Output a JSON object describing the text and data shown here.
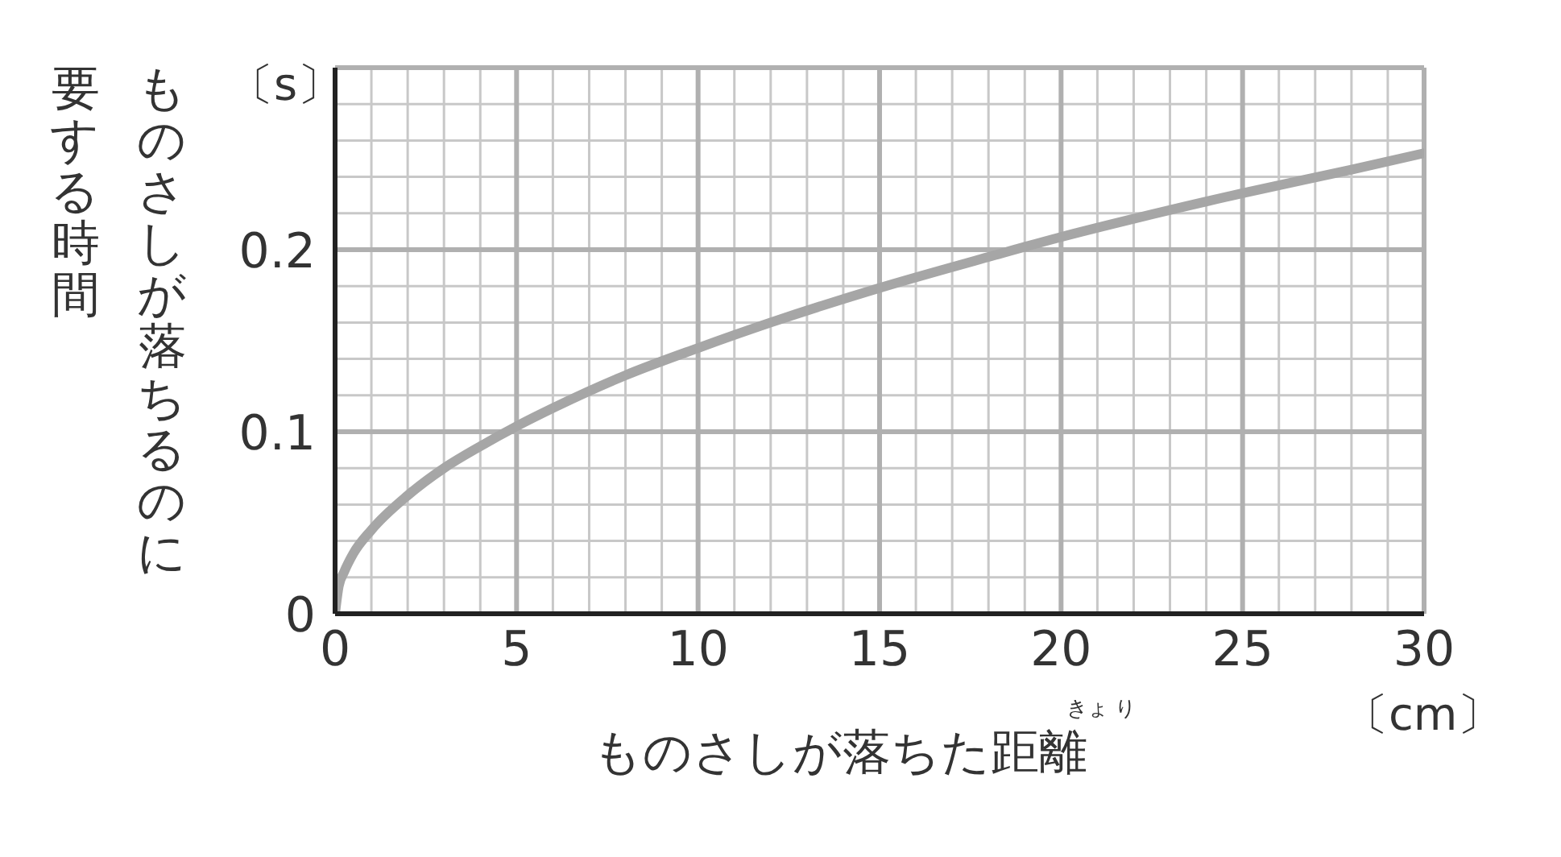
{
  "chart_data": {
    "type": "line",
    "xlabel": "ものさしが落ちた距離",
    "ylabel": "ものさしが落ちるのに要する時間",
    "annotations": [
      "〔s〕",
      "〔cm〕",
      "きょ り"
    ],
    "x": [
      0,
      0.1,
      0.25,
      0.5,
      1,
      2,
      3,
      4,
      5,
      6,
      8,
      10,
      12,
      15,
      18,
      20,
      22,
      25,
      28,
      30
    ],
    "series": [
      {
        "color": "#a6a6a6",
        "values": [
          0,
          0.015,
          0.023,
          0.033,
          0.046,
          0.065,
          0.08,
          0.092,
          0.103,
          0.113,
          0.131,
          0.146,
          0.16,
          0.179,
          0.196,
          0.207,
          0.217,
          0.231,
          0.244,
          0.253
        ]
      }
    ],
    "xlim": [
      0,
      30
    ],
    "xticks": [
      0,
      {
        "value": 1,
        "label": null
      },
      {
        "value": 2,
        "label": null
      },
      {
        "value": 3,
        "label": null
      },
      {
        "value": 4,
        "label": null
      },
      5,
      {
        "value": 6,
        "label": null
      },
      {
        "value": 7,
        "label": null
      },
      {
        "value": 8,
        "label": null
      },
      {
        "value": 9,
        "label": null
      },
      10,
      {
        "value": 11,
        "label": null
      },
      {
        "value": 12,
        "label": null
      },
      {
        "value": 13,
        "label": null
      },
      {
        "value": 14,
        "label": null
      },
      15,
      {
        "value": 16,
        "label": null
      },
      {
        "value": 17,
        "label": null
      },
      {
        "value": 18,
        "label": null
      },
      {
        "value": 19,
        "label": null
      },
      20,
      {
        "value": 21,
        "label": null
      },
      {
        "value": 22,
        "label": null
      },
      {
        "value": 23,
        "label": null
      },
      {
        "value": 24,
        "label": null
      },
      25,
      {
        "value": 26,
        "label": null
      },
      {
        "value": 27,
        "label": null
      },
      {
        "value": 28,
        "label": null
      },
      {
        "value": 29,
        "label": null
      },
      30
    ],
    "ylim": [
      0,
      0.3
    ],
    "yticks": [
      0,
      {
        "value": 0.02,
        "label": null
      },
      {
        "value": 0.04,
        "label": null
      },
      {
        "value": 0.06,
        "label": null
      },
      {
        "value": 0.08,
        "label": null
      },
      0.1,
      {
        "value": 0.12,
        "label": null
      },
      {
        "value": 0.14,
        "label": null
      },
      {
        "value": 0.16,
        "label": null
      },
      {
        "value": 0.18,
        "label": null
      },
      0.2,
      {
        "value": 0.22,
        "label": null
      },
      {
        "value": 0.24,
        "label": null
      },
      {
        "value": 0.26,
        "label": null
      },
      {
        "value": 0.28,
        "label": null
      },
      {
        "value": 0.3,
        "label": null
      }
    ],
    "grid": true,
    "marker": "none",
    "line_style": "solid"
  }
}
